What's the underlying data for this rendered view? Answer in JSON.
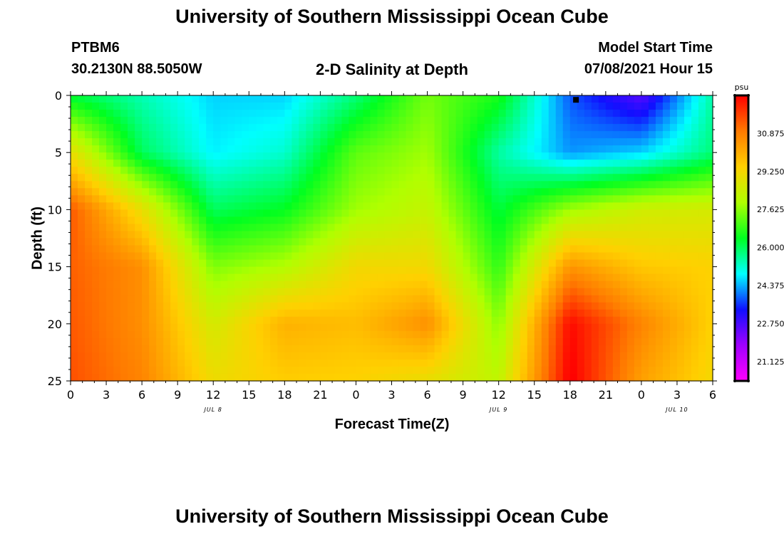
{
  "header": {
    "title_top": "University of Southern Mississippi Ocean Cube",
    "title_bottom": "University of Southern Mississippi Ocean Cube",
    "station": "PTBM6",
    "location": "30.2130N  88.5050W",
    "plot_title": "2-D Salinity at Depth",
    "model_label": "Model Start Time",
    "model_time": "07/08/2021 Hour 15"
  },
  "colors": {
    "scale": [
      "#ff00ff",
      "#a000ff",
      "#1010ff",
      "#00ffff",
      "#00ff20",
      "#b0ff00",
      "#ffd000",
      "#ff7a00",
      "#ff0000"
    ],
    "marker": "#000000"
  },
  "chart_data": {
    "type": "heatmap",
    "title": "2-D Salinity at Depth",
    "xlabel": "Forecast Time(Z)",
    "ylabel": "Depth (ft)",
    "x_tick_labels": [
      "0",
      "3",
      "6",
      "9",
      "12",
      "15",
      "18",
      "21",
      "0",
      "3",
      "6",
      "9",
      "12",
      "15",
      "18",
      "21",
      "0",
      "3",
      "6"
    ],
    "x_date_labels": [
      "JUL 8",
      "JUL 9",
      "JUL 10"
    ],
    "y_tick_labels": [
      "0",
      "5",
      "10",
      "15",
      "20",
      "25"
    ],
    "ylim": [
      25,
      0
    ],
    "x_range_hours": [
      0,
      54
    ],
    "colorbar": {
      "unit": "psu",
      "tick_labels": [
        "30.875",
        "29.250",
        "27.625",
        "26.000",
        "24.375",
        "22.750",
        "21.125"
      ],
      "range": [
        20.3,
        32.5
      ]
    },
    "grid_hours": [
      0,
      6,
      12,
      18,
      24,
      30,
      36,
      42,
      48,
      54
    ],
    "grid_depths": [
      0,
      5,
      10,
      15,
      20,
      25
    ],
    "values": [
      [
        26.2,
        25.4,
        24.6,
        24.6,
        25.8,
        27.4,
        26.6,
        23.8,
        22.6,
        25.5
      ],
      [
        29.0,
        26.0,
        24.8,
        25.2,
        27.2,
        27.8,
        25.5,
        24.2,
        24.6,
        25.8
      ],
      [
        31.4,
        29.0,
        26.0,
        26.4,
        27.8,
        28.3,
        26.2,
        27.8,
        28.5,
        28.6
      ],
      [
        31.3,
        30.6,
        27.5,
        28.0,
        29.2,
        29.2,
        26.8,
        30.5,
        29.6,
        29.4
      ],
      [
        31.4,
        30.6,
        28.6,
        30.0,
        29.8,
        30.6,
        27.6,
        32.4,
        30.8,
        29.4
      ],
      [
        31.5,
        30.8,
        29.1,
        29.5,
        29.4,
        29.0,
        28.2,
        32.6,
        30.3,
        29.2
      ]
    ],
    "marker": {
      "hour": 42.5,
      "depth": 0.2
    }
  }
}
